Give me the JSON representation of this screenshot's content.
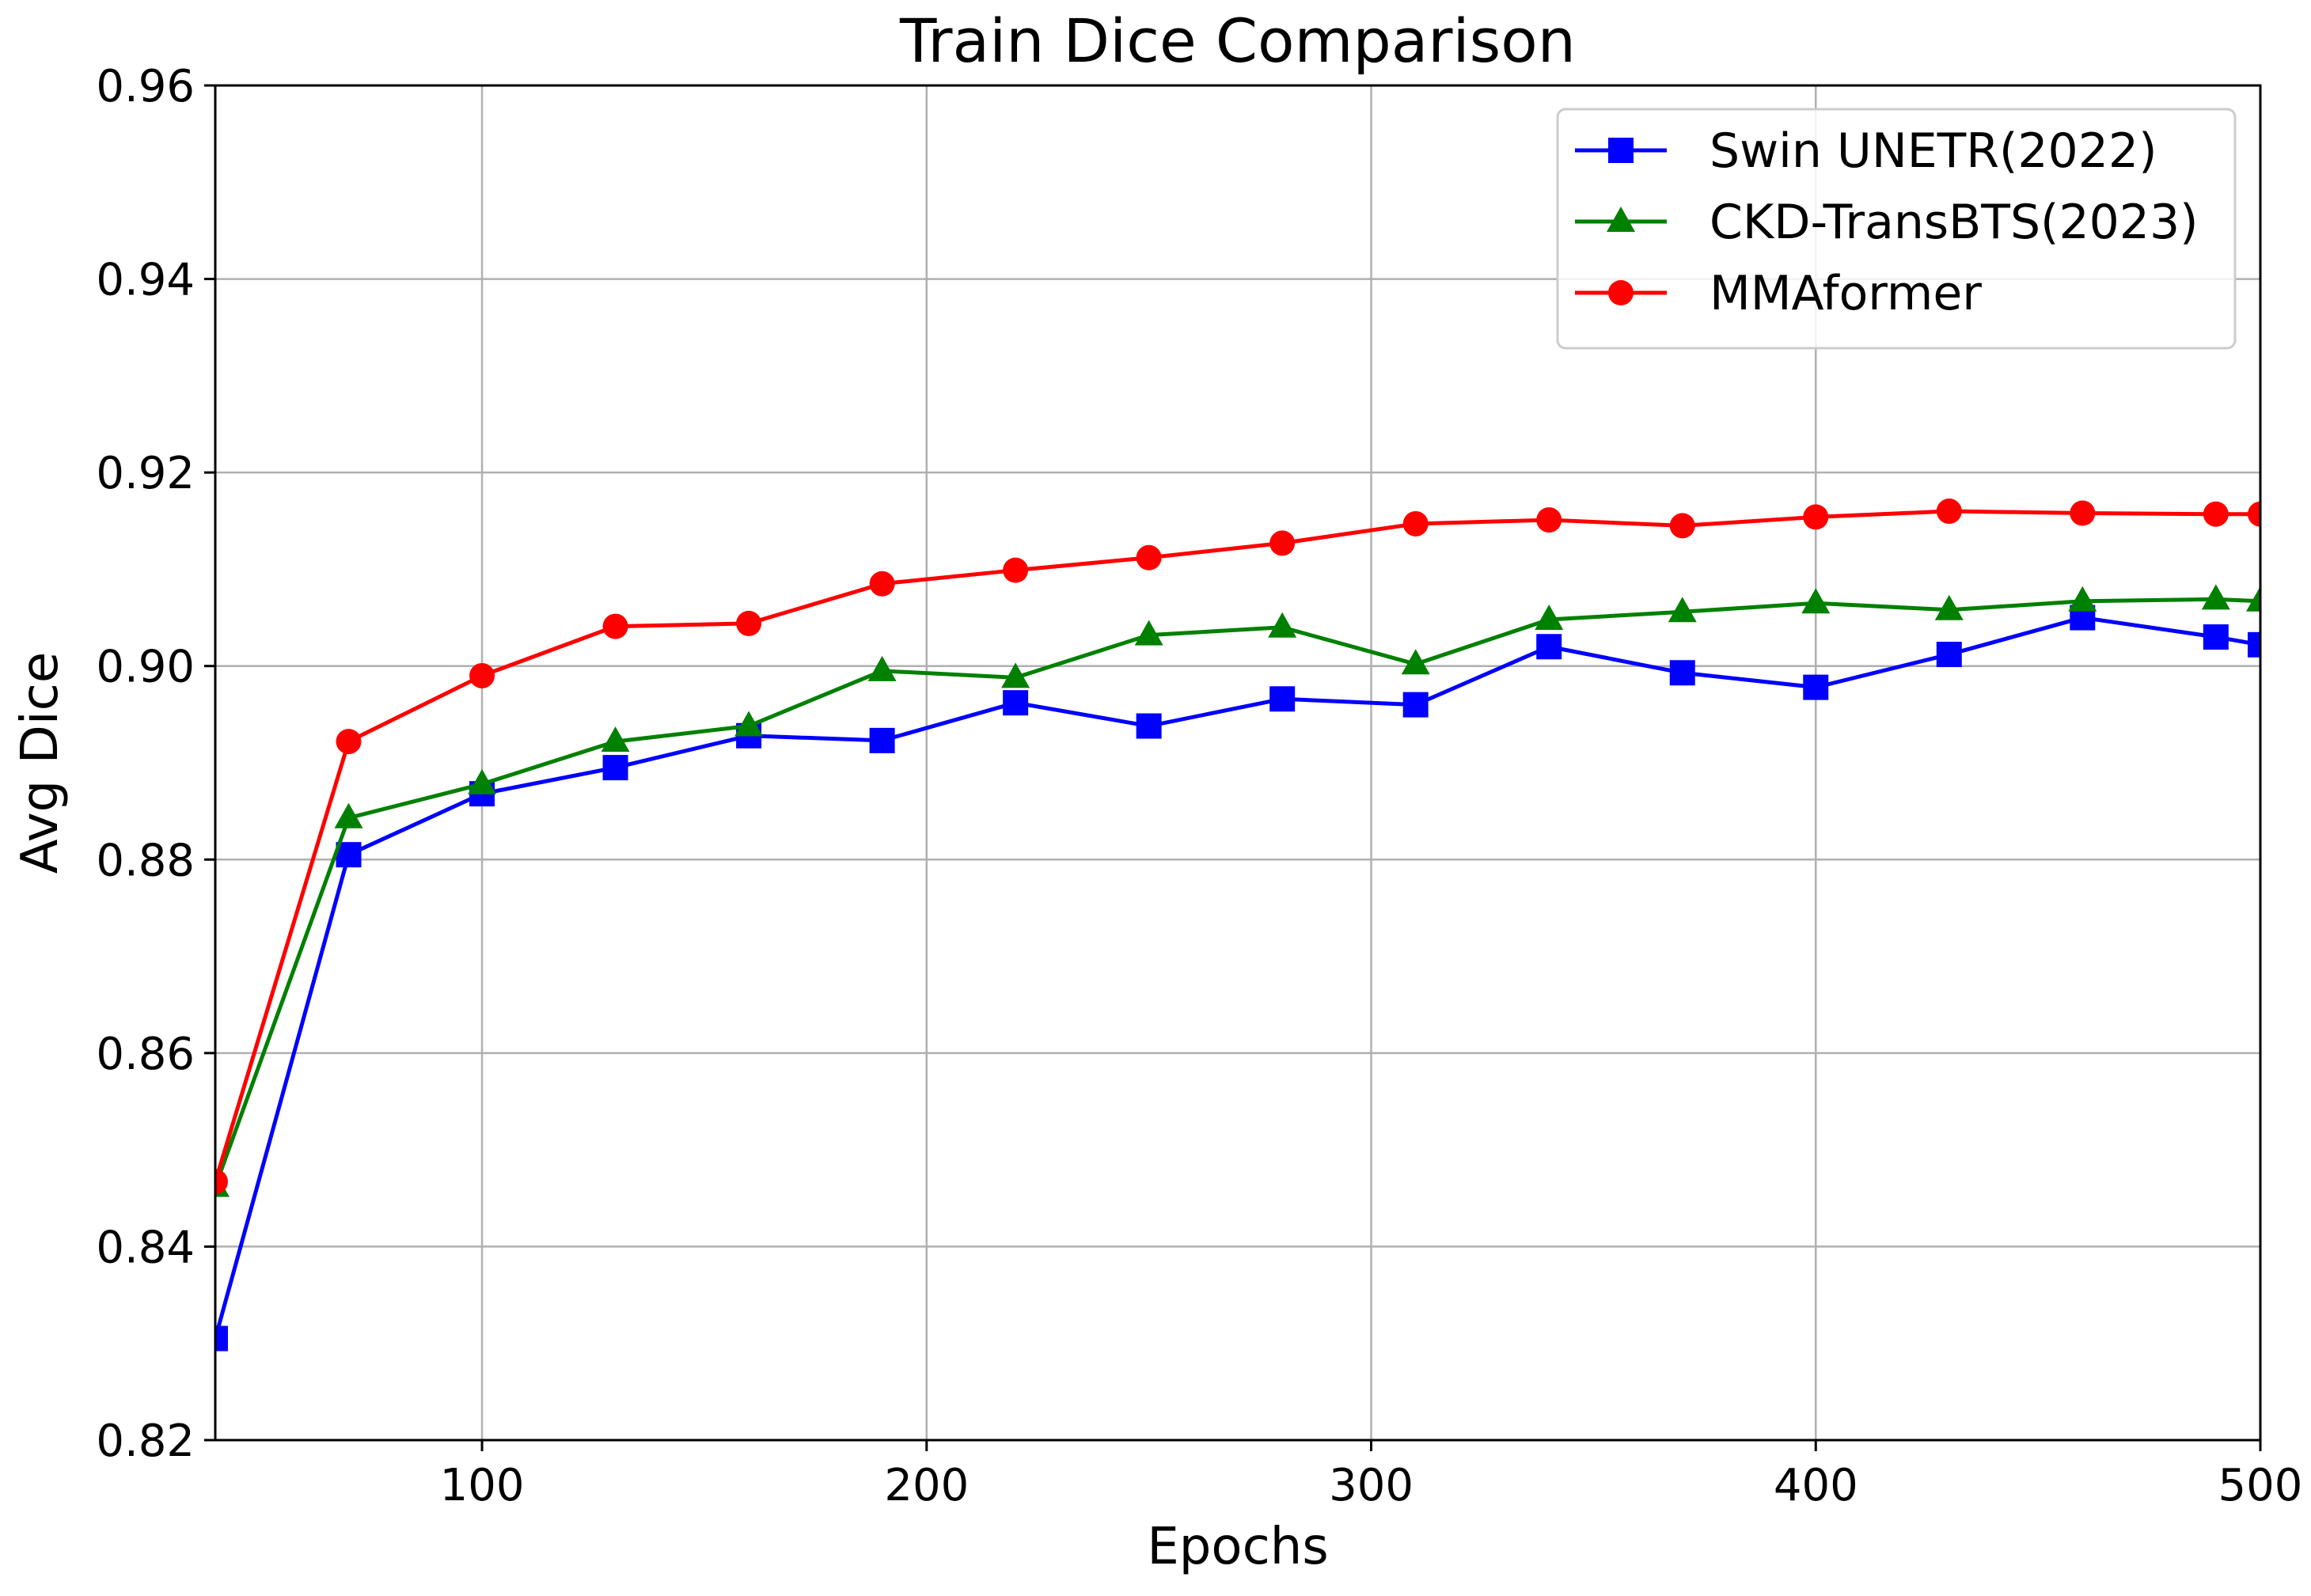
{
  "chart_data": {
    "type": "line",
    "title": "Train Dice Comparison",
    "xlabel": "Epochs",
    "ylabel": "Avg Dice",
    "xlim": [
      40,
      500
    ],
    "ylim": [
      0.82,
      0.96
    ],
    "x_ticks": [
      100,
      200,
      300,
      400,
      500
    ],
    "x_tick_labels": [
      "100",
      "200",
      "300",
      "400",
      "500"
    ],
    "y_ticks": [
      0.82,
      0.84,
      0.86,
      0.88,
      0.9,
      0.92,
      0.94,
      0.96
    ],
    "y_tick_labels": [
      "0.82",
      "0.84",
      "0.86",
      "0.88",
      "0.90",
      "0.92",
      "0.94",
      "0.96"
    ],
    "grid": true,
    "legend_position": "top-right",
    "x": [
      40,
      70,
      100,
      130,
      160,
      190,
      220,
      250,
      280,
      310,
      340,
      370,
      400,
      430,
      460,
      490,
      500
    ],
    "series": [
      {
        "name": "Swin UNETR(2022)",
        "color": "#0000ff",
        "marker": "square",
        "values": [
          0.8305,
          0.8805,
          0.8868,
          0.8895,
          0.8928,
          0.8923,
          0.8962,
          0.8938,
          0.8966,
          0.896,
          0.902,
          0.8993,
          0.8978,
          0.9012,
          0.905,
          0.903,
          0.9022
        ]
      },
      {
        "name": "CKD-TransBTS(2023)",
        "color": "#008000",
        "marker": "triangle",
        "values": [
          0.8462,
          0.8843,
          0.8878,
          0.8922,
          0.8938,
          0.8995,
          0.8988,
          0.9032,
          0.904,
          0.9002,
          0.9048,
          0.9056,
          0.9065,
          0.9058,
          0.9067,
          0.9069,
          0.9067
        ]
      },
      {
        "name": "MMAformer",
        "color": "#ff0000",
        "marker": "circle",
        "values": [
          0.8467,
          0.8922,
          0.899,
          0.9041,
          0.9044,
          0.9085,
          0.9099,
          0.9112,
          0.9127,
          0.9147,
          0.9151,
          0.9145,
          0.9154,
          0.916,
          0.9158,
          0.9157,
          0.9157
        ]
      }
    ]
  }
}
